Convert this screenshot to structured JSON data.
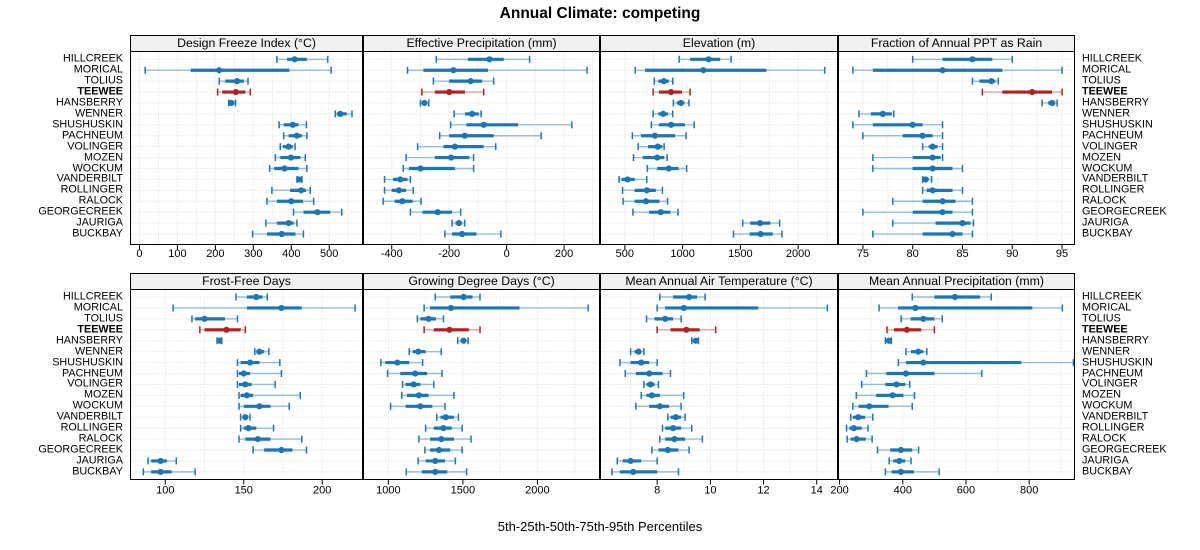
{
  "title": "Annual Climate: competing",
  "caption": "5th-25th-50th-75th-95th Percentiles",
  "sites": [
    "HILLCREEK",
    "MORICAL",
    "TOLIUS",
    "TEEWEE",
    "HANSBERRY",
    "WENNER",
    "SHUSHUSKIN",
    "PACHNEUM",
    "VOLINGER",
    "MOZEN",
    "WOCKUM",
    "VANDERBILT",
    "ROLLINGER",
    "RALOCK",
    "GEORGECREEK",
    "JAURIGA",
    "BUCKBAY"
  ],
  "highlight_site": "TEEWEE",
  "colors": {
    "series": "#1b75b6",
    "series_light": "#91bedc",
    "highlight": "#b22020",
    "highlight_light": "#dca4a4",
    "strip_bg": "#f0f0f0",
    "grid": "#d8d8d8",
    "border": "#000000",
    "background": "#ffffff"
  },
  "chart_data": {
    "type": "dot-whisker-trellis",
    "layout_grid": "2 rows x 4 cols",
    "percentile_labels": [
      "5th",
      "25th",
      "50th",
      "75th",
      "95th"
    ],
    "panels": [
      {
        "title": "Design Freeze Index (°C)",
        "row": 0,
        "col": 0,
        "xlim": [
          -25,
          589
        ],
        "ticks": [
          0,
          100,
          200,
          300,
          400,
          500
        ],
        "grid_step": 50,
        "series": {
          "HILLCREEK": [
            362,
            389,
            409,
            441,
            496
          ],
          "MORICAL": [
            15,
            135,
            210,
            395,
            505
          ],
          "TOLIUS": [
            210,
            226,
            257,
            275,
            286
          ],
          "TEEWEE": [
            206,
            218,
            254,
            279,
            292
          ],
          "HANSBERRY": [
            235,
            238,
            242,
            247,
            253
          ],
          "WENNER": [
            516,
            520,
            529,
            546,
            560
          ],
          "SHUSHUSKIN": [
            368,
            380,
            404,
            419,
            440
          ],
          "PACHNEUM": [
            380,
            393,
            415,
            428,
            441
          ],
          "VOLINGER": [
            371,
            378,
            393,
            404,
            410
          ],
          "MOZEN": [
            358,
            371,
            399,
            424,
            437
          ],
          "WOCKUM": [
            343,
            355,
            382,
            419,
            441
          ],
          "VANDERBILT": [
            415,
            417,
            421,
            424,
            428
          ],
          "ROLLINGER": [
            349,
            397,
            426,
            439,
            450
          ],
          "RALOCK": [
            336,
            362,
            400,
            431,
            459
          ],
          "GEORGECREEK": [
            406,
            432,
            469,
            503,
            533
          ],
          "JAURIGA": [
            333,
            362,
            393,
            406,
            415
          ],
          "BUCKBAY": [
            298,
            336,
            375,
            411,
            432
          ]
        }
      },
      {
        "title": "Effective Precipitation (mm)",
        "row": 0,
        "col": 1,
        "xlim": [
          -500,
          325
        ],
        "ticks": [
          -400,
          -200,
          0,
          200
        ],
        "grid_step": 100,
        "series": {
          "HILLCREEK": [
            -245,
            -135,
            -60,
            -10,
            80
          ],
          "MORICAL": [
            -345,
            -290,
            -185,
            -65,
            280
          ],
          "TOLIUS": [
            -255,
            -200,
            -125,
            -85,
            -45
          ],
          "TEEWEE": [
            -295,
            -250,
            -200,
            -145,
            -80
          ],
          "HANSBERRY": [
            -300,
            -293,
            -286,
            -279,
            -271
          ],
          "WENNER": [
            -183,
            -145,
            -120,
            -97,
            -89
          ],
          "SHUSHUSKIN": [
            -195,
            -140,
            -80,
            40,
            227
          ],
          "PACHNEUM": [
            -233,
            -200,
            -146,
            -45,
            120
          ],
          "VOLINGER": [
            -310,
            -220,
            -180,
            -80,
            -38
          ],
          "MOZEN": [
            -350,
            -250,
            -193,
            -130,
            -115
          ],
          "WOCKUM": [
            -360,
            -340,
            -300,
            -180,
            -115
          ],
          "VANDERBILT": [
            -425,
            -395,
            -370,
            -345,
            -335
          ],
          "ROLLINGER": [
            -425,
            -400,
            -375,
            -350,
            -325
          ],
          "RALOCK": [
            -430,
            -390,
            -363,
            -327,
            -298
          ],
          "GEORGECREEK": [
            -335,
            -293,
            -240,
            -190,
            -160
          ],
          "JAURIGA": [
            -190,
            -178,
            -166,
            -156,
            -146
          ],
          "BUCKBAY": [
            -215,
            -190,
            -155,
            -105,
            -20
          ]
        }
      },
      {
        "title": "Elevation (m)",
        "row": 0,
        "col": 2,
        "xlim": [
          285,
          2345
        ],
        "ticks": [
          500,
          1000,
          1500,
          2000
        ],
        "grid_step": 250,
        "series": {
          "HILLCREEK": [
            970,
            1065,
            1225,
            1325,
            1420
          ],
          "MORICAL": [
            590,
            675,
            1180,
            1725,
            2230
          ],
          "TOLIUS": [
            755,
            790,
            838,
            880,
            915
          ],
          "TEEWEE": [
            745,
            795,
            900,
            995,
            1065
          ],
          "HANSBERRY": [
            920,
            950,
            985,
            1015,
            1055
          ],
          "WENNER": [
            745,
            790,
            832,
            875,
            914
          ],
          "SHUSHUSKIN": [
            730,
            795,
            900,
            1020,
            1100
          ],
          "PACHNEUM": [
            565,
            640,
            760,
            935,
            1030
          ],
          "VOLINGER": [
            615,
            700,
            785,
            825,
            840
          ],
          "MOZEN": [
            575,
            655,
            780,
            840,
            866
          ],
          "WOCKUM": [
            695,
            780,
            880,
            965,
            1035
          ],
          "VANDERBILT": [
            450,
            472,
            523,
            585,
            690
          ],
          "ROLLINGER": [
            480,
            585,
            690,
            768,
            825
          ],
          "RALOCK": [
            485,
            585,
            683,
            800,
            870
          ],
          "GEORGECREEK": [
            570,
            710,
            810,
            895,
            960
          ],
          "JAURIGA": [
            1520,
            1585,
            1670,
            1760,
            1840
          ],
          "BUCKBAY": [
            1440,
            1580,
            1675,
            1780,
            1860
          ]
        }
      },
      {
        "title": "Fraction of Annual PPT as Rain",
        "row": 0,
        "col": 3,
        "xlim": [
          72.5,
          96.3
        ],
        "ticks": [
          75,
          80,
          85,
          90,
          95
        ],
        "grid_step": 2.5,
        "series": {
          "HILLCREEK": [
            80,
            83,
            86,
            88,
            90
          ],
          "MORICAL": [
            74,
            76,
            83,
            89,
            95
          ],
          "TOLIUS": [
            86,
            86.7,
            87.9,
            88.3,
            88.6
          ],
          "TEEWEE": [
            87,
            89,
            92,
            94,
            95
          ],
          "HANSBERRY": [
            93,
            93.6,
            94,
            94.3,
            94.5
          ],
          "WENNER": [
            74.6,
            75.8,
            77,
            77.9,
            78.1
          ],
          "SHUSHUSKIN": [
            74,
            76,
            80,
            81,
            83
          ],
          "PACHNEUM": [
            75,
            79,
            81,
            82,
            83
          ],
          "VOLINGER": [
            81,
            81.6,
            82,
            82.5,
            83
          ],
          "MOZEN": [
            76,
            80,
            82,
            82.8,
            83
          ],
          "WOCKUM": [
            76,
            80,
            82,
            84,
            85
          ],
          "VANDERBILT": [
            81,
            81.1,
            81.3,
            81.6,
            81.9
          ],
          "ROLLINGER": [
            81,
            81.4,
            82,
            84,
            85
          ],
          "RALOCK": [
            78,
            81,
            83,
            84.3,
            86
          ],
          "GEORGECREEK": [
            75,
            80,
            83,
            84,
            86
          ],
          "JAURIGA": [
            78,
            82.3,
            85,
            85.8,
            86.1
          ],
          "BUCKBAY": [
            76,
            81,
            84,
            85,
            86
          ]
        }
      },
      {
        "title": "Frost-Free Days",
        "row": 1,
        "col": 0,
        "xlim": [
          77.5,
          226
        ],
        "ticks": [
          100,
          150,
          200
        ],
        "grid_step": 25,
        "series": {
          "HILLCREEK": [
            145,
            152,
            158,
            162,
            165
          ],
          "MORICAL": [
            105,
            152,
            174,
            187,
            221
          ],
          "TOLIUS": [
            117,
            119,
            125,
            138,
            146
          ],
          "TEEWEE": [
            122,
            125,
            139,
            148,
            151
          ],
          "HANSBERRY": [
            133,
            134,
            134.5,
            135,
            136
          ],
          "WENNER": [
            157,
            158,
            160,
            163,
            166
          ],
          "SHUSHUSKIN": [
            146,
            148,
            154,
            160,
            173
          ],
          "PACHNEUM": [
            146,
            147,
            150,
            154,
            174
          ],
          "VOLINGER": [
            146,
            147,
            151,
            155,
            170
          ],
          "MOZEN": [
            147,
            148,
            152,
            156,
            186
          ],
          "WOCKUM": [
            147,
            150,
            160,
            167,
            179
          ],
          "VANDERBILT": [
            148,
            150,
            151,
            152,
            154
          ],
          "ROLLINGER": [
            148,
            150,
            153,
            158,
            169
          ],
          "RALOCK": [
            147,
            151,
            159,
            167,
            187
          ],
          "GEORGECREEK": [
            156,
            163,
            174,
            181,
            190
          ],
          "JAURIGA": [
            89,
            91,
            97,
            101,
            107
          ],
          "BUCKBAY": [
            86,
            91,
            97,
            104,
            119
          ]
        }
      },
      {
        "title": "Growing Degree Days (°C)",
        "row": 1,
        "col": 1,
        "xlim": [
          830,
          2420
        ],
        "ticks": [
          1000,
          1500,
          2000
        ],
        "grid_step": 250,
        "series": {
          "HILLCREEK": [
            1315,
            1415,
            1505,
            1565,
            1615
          ],
          "MORICAL": [
            1240,
            1280,
            1420,
            1880,
            2340
          ],
          "TOLIUS": [
            1195,
            1215,
            1270,
            1320,
            1370
          ],
          "TEEWEE": [
            1240,
            1305,
            1410,
            1540,
            1615
          ],
          "HANSBERRY": [
            1465,
            1485,
            1505,
            1520,
            1535
          ],
          "WENNER": [
            1140,
            1165,
            1200,
            1250,
            1355
          ],
          "SHUSHUSKIN": [
            950,
            980,
            1060,
            1140,
            1230
          ],
          "PACHNEUM": [
            995,
            1080,
            1180,
            1260,
            1360
          ],
          "VOLINGER": [
            1095,
            1115,
            1170,
            1215,
            1305
          ],
          "MOZEN": [
            1090,
            1125,
            1205,
            1270,
            1440
          ],
          "WOCKUM": [
            1015,
            1115,
            1215,
            1295,
            1380
          ],
          "VANDERBILT": [
            1325,
            1350,
            1385,
            1440,
            1470
          ],
          "ROLLINGER": [
            1250,
            1305,
            1370,
            1425,
            1495
          ],
          "RALOCK": [
            1205,
            1280,
            1355,
            1440,
            1555
          ],
          "GEORGECREEK": [
            1245,
            1280,
            1340,
            1415,
            1495
          ],
          "JAURIGA": [
            1200,
            1250,
            1315,
            1380,
            1450
          ],
          "BUCKBAY": [
            1120,
            1225,
            1315,
            1395,
            1525
          ]
        }
      },
      {
        "title": "Mean Annual Air Temperature (°C)",
        "row": 1,
        "col": 2,
        "xlim": [
          5.85,
          14.8
        ],
        "ticks": [
          8,
          10,
          12,
          14
        ],
        "grid_step": 1,
        "series": {
          "HILLCREEK": [
            8.1,
            8.6,
            9.2,
            9.5,
            9.8
          ],
          "MORICAL": [
            8.0,
            8.3,
            9.0,
            11.8,
            14.4
          ],
          "TOLIUS": [
            7.6,
            7.9,
            8.3,
            8.6,
            8.9
          ],
          "TEEWEE": [
            8.0,
            8.5,
            9.1,
            9.6,
            10.2
          ],
          "HANSBERRY": [
            9.3,
            9.4,
            9.45,
            9.5,
            9.55
          ],
          "WENNER": [
            7.0,
            7.15,
            7.3,
            7.4,
            7.5
          ],
          "SHUSHUSKIN": [
            6.6,
            7.0,
            7.4,
            7.7,
            8.0
          ],
          "PACHNEUM": [
            6.8,
            7.2,
            7.7,
            8.2,
            8.5
          ],
          "VOLINGER": [
            7.5,
            7.6,
            7.75,
            7.9,
            8.05
          ],
          "MOZEN": [
            7.4,
            7.6,
            7.8,
            8.1,
            9.0
          ],
          "WOCKUM": [
            7.2,
            7.7,
            8.1,
            8.45,
            8.9
          ],
          "VANDERBILT": [
            8.4,
            8.5,
            8.7,
            8.9,
            9.05
          ],
          "ROLLINGER": [
            8.2,
            8.3,
            8.6,
            8.9,
            9.3
          ],
          "RALOCK": [
            8.1,
            8.3,
            8.65,
            9.05,
            9.7
          ],
          "GEORGECREEK": [
            7.8,
            8.05,
            8.4,
            8.8,
            9.2
          ],
          "JAURIGA": [
            6.5,
            6.7,
            7.0,
            7.4,
            8.0
          ],
          "BUCKBAY": [
            6.3,
            6.6,
            7.1,
            8.0,
            8.8
          ]
        }
      },
      {
        "title": "Mean Annual Precipitation (mm)",
        "row": 1,
        "col": 3,
        "xlim": [
          195,
          945
        ],
        "ticks": [
          200,
          400,
          600,
          800
        ],
        "grid_step": 100,
        "series": {
          "HILLCREEK": [
            430,
            500,
            565,
            645,
            680
          ],
          "MORICAL": [
            325,
            385,
            440,
            810,
            905
          ],
          "TOLIUS": [
            395,
            425,
            465,
            500,
            525
          ],
          "TEEWEE": [
            350,
            372,
            413,
            458,
            500
          ],
          "HANSBERRY": [
            345,
            351,
            356,
            360,
            364
          ],
          "WENNER": [
            410,
            426,
            449,
            465,
            476
          ],
          "SHUSHUSKIN": [
            386,
            410,
            465,
            775,
            940
          ],
          "PACHNEUM": [
            285,
            348,
            410,
            500,
            650
          ],
          "VOLINGER": [
            270,
            345,
            380,
            408,
            422
          ],
          "MOZEN": [
            253,
            316,
            368,
            402,
            437
          ],
          "WOCKUM": [
            242,
            260,
            294,
            355,
            430
          ],
          "VANDERBILT": [
            235,
            242,
            259,
            281,
            305
          ],
          "ROLLINGER": [
            222,
            231,
            245,
            270,
            290
          ],
          "RALOCK": [
            224,
            235,
            254,
            283,
            303
          ],
          "GEORGECREEK": [
            320,
            360,
            394,
            430,
            450
          ],
          "JAURIGA": [
            357,
            370,
            389,
            408,
            426
          ],
          "BUCKBAY": [
            345,
            365,
            394,
            435,
            515
          ]
        }
      }
    ]
  }
}
